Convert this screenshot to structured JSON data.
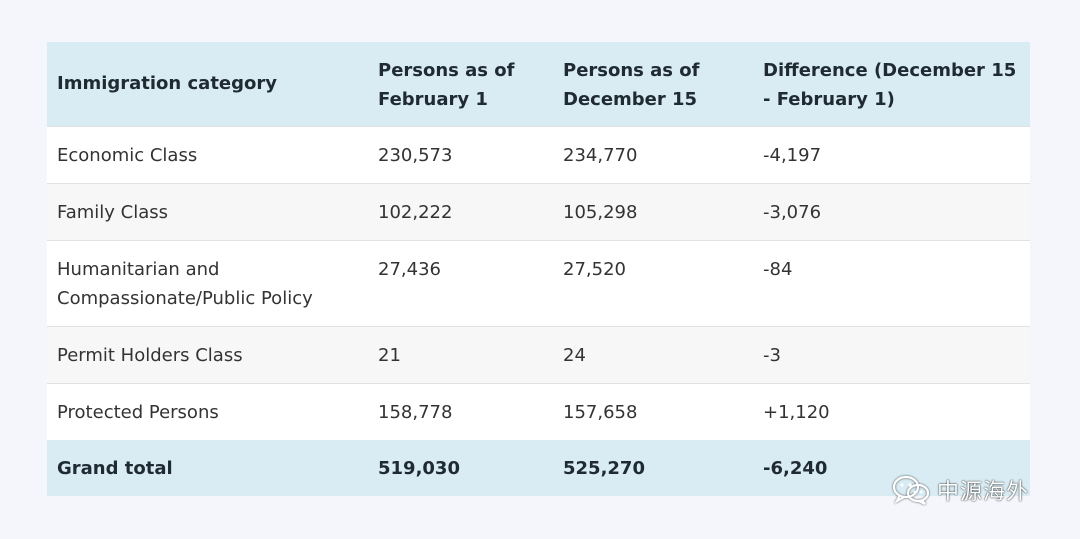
{
  "chart_data": {
    "type": "table",
    "columns": [
      "Immigration category",
      "Persons as of February 1",
      "Persons as of December 15",
      "Difference (December 15 - February 1)"
    ],
    "rows": [
      [
        "Economic Class",
        "230,573",
        "234,770",
        "-4,197"
      ],
      [
        "Family Class",
        "102,222",
        "105,298",
        "-3,076"
      ],
      [
        "Humanitarian and Compassionate/Public Policy",
        "27,436",
        "27,520",
        "-84"
      ],
      [
        "Permit Holders Class",
        "21",
        "24",
        "-3"
      ],
      [
        "Protected Persons",
        "158,778",
        "157,658",
        "+1,120"
      ]
    ],
    "total": [
      "Grand total",
      "519,030",
      "525,270",
      "-6,240"
    ]
  },
  "watermark": {
    "text": "中源海外",
    "icon": "wechat-icon"
  },
  "colors": {
    "header_bg": "#d9ecf4",
    "row_alt_bg": "#f7f7f7",
    "page_bg": "#f4f6fb"
  }
}
